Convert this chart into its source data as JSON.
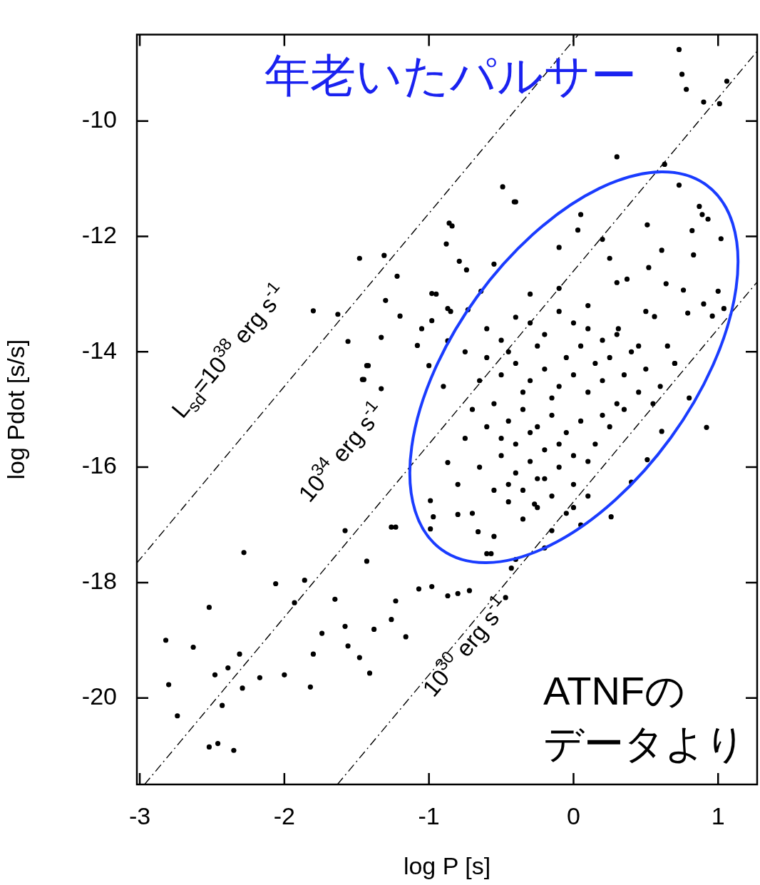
{
  "chart_data": {
    "type": "scatter",
    "title": "年老いたパルサー",
    "xlabel": "log P [s]",
    "ylabel": "log Pdot [s/s]",
    "xlim": [
      -3.02,
      1.27
    ],
    "ylim": [
      -21.5,
      -8.5
    ],
    "xticks": [
      -3,
      -2,
      -1,
      0,
      1
    ],
    "yticks": [
      -20,
      -18,
      -16,
      -14,
      -12,
      -10
    ],
    "grid": false,
    "legend": false,
    "series": [
      {
        "color": "#000000",
        "marker": "circle",
        "x": [
          -2.82,
          -2.8,
          -2.74,
          -2.63,
          -2.52,
          -2.52,
          -2.48,
          -2.46,
          -2.43,
          -2.39,
          -2.35,
          -2.31,
          -2.28,
          -2.29,
          -2.17,
          -2.06,
          -2.0,
          -1.93,
          -1.86,
          -1.82,
          -1.8,
          -1.74,
          -1.65,
          -1.58,
          -1.56,
          -1.48,
          -1.43,
          -1.41,
          -1.38,
          -1.26,
          -1.23,
          -1.16,
          -1.07,
          -0.98,
          -0.87,
          -0.8,
          -0.72,
          -1.23,
          -0.97,
          -1.58,
          -1.43,
          -1.56,
          -1.63,
          -1.48,
          -1.31,
          -1.8,
          -1.46,
          -1.22,
          -1.3,
          -1.33,
          -1.2,
          -1.08,
          -0.98,
          -0.87,
          -0.79,
          -0.74,
          -0.64,
          -0.55,
          -0.4,
          -0.84,
          -0.88,
          -0.98,
          -1.0,
          -1.42,
          -1.45,
          -1.33,
          -0.87,
          -0.73,
          -0.6,
          -0.5,
          -0.4,
          -0.3,
          -0.2,
          -0.1,
          0.0,
          0.1,
          0.2,
          0.3,
          -0.55,
          -0.45,
          -0.35,
          -0.25,
          -0.15,
          -0.05,
          0.05,
          0.15,
          0.25,
          -0.5,
          -0.4,
          -0.3,
          -0.2,
          -0.1,
          0.0,
          0.1,
          -0.45,
          -0.35,
          -0.25,
          -0.15,
          -0.05,
          0.05,
          -0.6,
          -0.4,
          -0.2,
          0.0,
          0.2,
          0.4,
          0.5,
          0.6,
          0.7,
          0.8,
          -0.3,
          -0.1,
          0.1,
          0.3,
          0.5,
          -0.7,
          -0.75,
          -0.65,
          -0.8,
          -0.7,
          -0.55,
          -0.6,
          -0.4,
          -0.2,
          0.31,
          0.7,
          -0.27,
          0.26,
          0.61,
          0.92,
          0.4,
          0.51,
          -0.57,
          -0.99,
          -1.26,
          -0.87,
          -0.99,
          -0.8,
          -0.66,
          0.51,
          0.82,
          1.02,
          0.93,
          0.87,
          0.61,
          0.52,
          0.83,
          0.76,
          1.0,
          0.64,
          0.25,
          0.2,
          0.03,
          -0.1,
          1.04,
          0.9,
          0.79,
          0.96,
          0.56,
          0.37,
          0.05,
          0.73,
          0.75,
          1.06,
          0.9,
          1.01,
          0.78,
          0.3,
          0.63,
          0.73,
          -0.49,
          -0.41,
          0.89,
          -0.86,
          -0.43,
          -0.47,
          -0.45,
          -0.35,
          -0.25,
          -0.15,
          -0.05,
          0.05,
          0.15,
          0.25,
          0.35,
          0.45,
          -0.6,
          -0.5,
          -0.4,
          -0.3,
          -0.2,
          -0.1,
          0.0,
          0.1,
          0.2,
          0.35,
          -0.55,
          -0.45,
          -0.35,
          -0.25,
          -0.15,
          0.0,
          -0.65,
          -0.5,
          -0.3,
          -0.1,
          0.1,
          0.3,
          0.45,
          0.55,
          0.65,
          -0.85,
          -0.95,
          -1.05,
          -0.75,
          -0.9
        ],
        "values": [
          -19.0,
          -19.77,
          -20.31,
          -19.12,
          -18.43,
          -20.85,
          -19.6,
          -20.79,
          -20.13,
          -19.48,
          -20.91,
          -19.24,
          -17.48,
          -19.83,
          -19.65,
          -18.02,
          -19.6,
          -18.35,
          -17.96,
          -19.81,
          -19.24,
          -18.88,
          -18.29,
          -18.76,
          -19.1,
          -19.3,
          -17.63,
          -19.57,
          -18.81,
          -18.64,
          -18.32,
          -18.94,
          -18.11,
          -18.07,
          -18.23,
          -18.19,
          -18.14,
          -17.04,
          -16.86,
          -17.1,
          -14.24,
          -13.82,
          -13.35,
          -12.38,
          -12.33,
          -13.29,
          -14.48,
          -12.69,
          -13.11,
          -13.75,
          -13.38,
          -13.89,
          -12.99,
          -13.25,
          -12.43,
          -12.58,
          -12.95,
          -12.48,
          -11.4,
          -11.82,
          -12.13,
          -13.46,
          -14.24,
          -14.24,
          -14.48,
          -14.64,
          -13.81,
          -13.27,
          -14.1,
          -14.4,
          -14.2,
          -14.5,
          -14.3,
          -14.6,
          -14.4,
          -14.7,
          -14.5,
          -14.9,
          -14.9,
          -15.2,
          -15.0,
          -15.3,
          -15.1,
          -15.4,
          -15.2,
          -15.6,
          -15.3,
          -15.8,
          -16.1,
          -15.9,
          -16.2,
          -16.0,
          -16.3,
          -16.5,
          -16.6,
          -16.9,
          -16.7,
          -17.1,
          -16.8,
          -17.0,
          -13.6,
          -13.4,
          -13.7,
          -13.5,
          -13.8,
          -14.0,
          -14.3,
          -14.6,
          -14.2,
          -14.8,
          -13.0,
          -12.9,
          -13.2,
          -12.8,
          -13.3,
          -15.0,
          -15.5,
          -16.0,
          -16.3,
          -16.8,
          -17.2,
          -17.5,
          -17.6,
          -17.4,
          -13.6,
          -14.2,
          -16.64,
          -16.86,
          -15.38,
          -15.31,
          -16.26,
          -15.87,
          -17.5,
          -17.07,
          -17.04,
          -15.92,
          -16.58,
          -16.82,
          -17.12,
          -11.8,
          -11.9,
          -12.04,
          -11.7,
          -11.48,
          -12.24,
          -12.54,
          -12.32,
          -12.93,
          -12.95,
          -12.82,
          -12.38,
          -12.05,
          -11.89,
          -12.19,
          -13.25,
          -13.17,
          -13.33,
          -13.38,
          -13.39,
          -12.74,
          -11.62,
          -8.76,
          -9.19,
          -9.31,
          -9.67,
          -9.7,
          -9.45,
          -10.62,
          -10.75,
          -11.11,
          -11.14,
          -11.4,
          -11.62,
          -11.77,
          -17.75,
          -18.26,
          -14.0,
          -14.7,
          -13.9,
          -14.8,
          -14.1,
          -13.9,
          -14.2,
          -14.1,
          -14.4,
          -14.7,
          -15.3,
          -15.5,
          -15.6,
          -15.4,
          -15.7,
          -15.6,
          -15.8,
          -15.9,
          -15.1,
          -15.0,
          -16.4,
          -16.3,
          -16.4,
          -16.2,
          -16.5,
          -16.7,
          -14.5,
          -13.8,
          -13.5,
          -13.3,
          -13.6,
          -13.7,
          -13.9,
          -14.9,
          -13.9,
          -13.3,
          -13.0,
          -13.6,
          -14.0,
          -14.6
        ]
      },
      {
        "type": "line",
        "color": "#000000",
        "marker": "none",
        "line_style": "dashed",
        "x": [
          -3.02,
          0.03
        ],
        "values": [
          -17.66,
          -8.51
        ]
      },
      {
        "type": "line",
        "color": "#000000",
        "marker": "none",
        "line_style": "dashed",
        "x": [
          -2.967,
          1.27
        ],
        "values": [
          -21.5,
          -8.79
        ]
      },
      {
        "type": "line",
        "color": "#000000",
        "marker": "none",
        "line_style": "dashed",
        "x": [
          -1.633,
          1.27
        ],
        "values": [
          -21.5,
          -12.79
        ]
      }
    ],
    "annotations": [
      "L$_{sd}$=10$^{38}$ erg s$^{-1}$",
      "10$^{34}$ erg s$^{-1}$",
      "10$^{30}$ erg s$^{-1}$",
      "ATNFのデータより"
    ]
  }
}
